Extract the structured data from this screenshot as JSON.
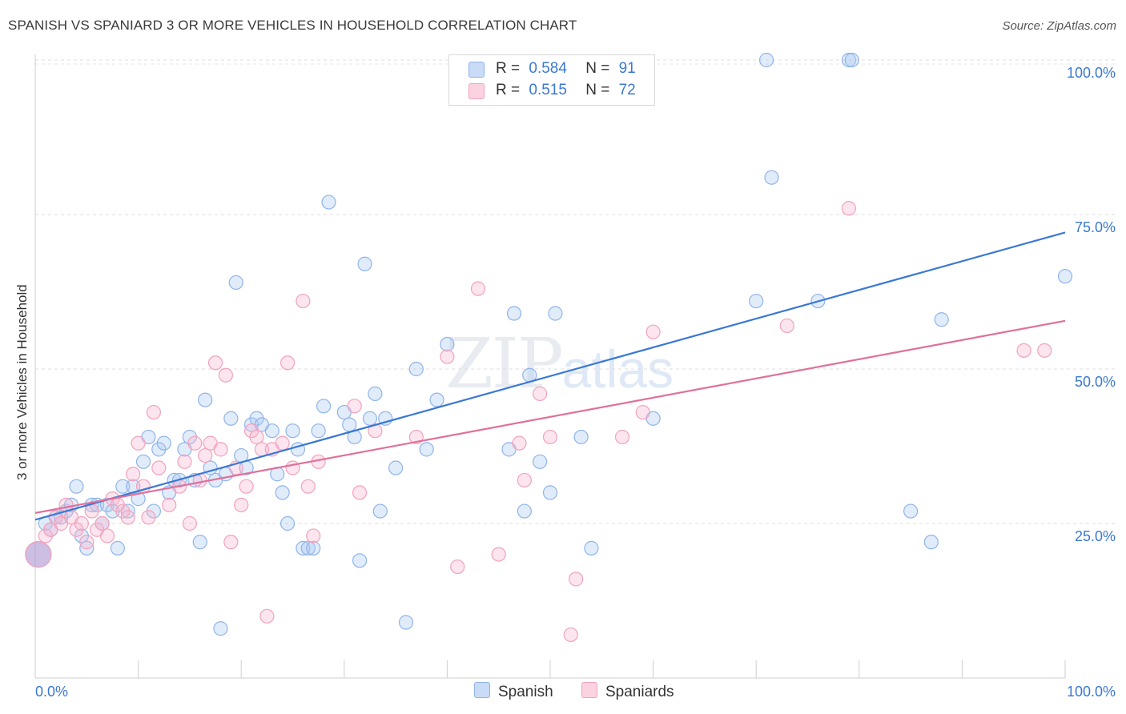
{
  "title": "SPANISH VS SPANIARD 3 OR MORE VEHICLES IN HOUSEHOLD CORRELATION CHART",
  "source": "Source: ZipAtlas.com",
  "watermark": {
    "zip": "ZIP",
    "atlas": "atlas"
  },
  "legend": {
    "r_label": "R =",
    "n_label": "N =",
    "rows": [
      {
        "r": "0.584",
        "n": "91"
      },
      {
        "r": "0.515",
        "n": "72"
      }
    ]
  },
  "chart_data": {
    "type": "scatter",
    "title": "SPANISH VS SPANIARD 3 OR MORE VEHICLES IN HOUSEHOLD CORRELATION CHART",
    "xlabel": "",
    "ylabel": "3 or more Vehicles in Household",
    "xlim": [
      0,
      100
    ],
    "ylim": [
      0,
      105
    ],
    "x_tick_labels": [
      "0.0%",
      "100.0%"
    ],
    "y_ticks": [
      25,
      50,
      75,
      100
    ],
    "y_tick_labels": [
      "25.0%",
      "50.0%",
      "75.0%",
      "100.0%"
    ],
    "grid": "horizontal dashed",
    "legend_position": "top-center",
    "colors": {
      "Spanish": "#8fb4ea",
      "Spaniards": "#f2a2bd",
      "Spanish_line": "#3a78d4",
      "Spaniards_line": "#e0709a"
    },
    "series": [
      {
        "name": "Spanish",
        "color": "#8fb4ea",
        "trend": {
          "x": [
            0,
            100
          ],
          "y": [
            25.6,
            72.1
          ]
        },
        "points": [
          [
            0.3,
            20
          ],
          [
            1,
            25
          ],
          [
            1.5,
            24
          ],
          [
            2,
            26
          ],
          [
            2.5,
            26
          ],
          [
            3,
            27
          ],
          [
            3.5,
            28
          ],
          [
            4,
            31
          ],
          [
            4.5,
            23
          ],
          [
            5,
            21
          ],
          [
            5.5,
            28
          ],
          [
            6,
            28
          ],
          [
            6.5,
            25
          ],
          [
            7,
            28
          ],
          [
            7.5,
            27
          ],
          [
            8,
            21
          ],
          [
            8.5,
            31
          ],
          [
            9,
            27
          ],
          [
            9.5,
            31
          ],
          [
            10,
            29
          ],
          [
            10.5,
            35
          ],
          [
            11,
            39
          ],
          [
            11.5,
            27
          ],
          [
            12,
            37
          ],
          [
            12.5,
            38
          ],
          [
            13,
            30
          ],
          [
            13.5,
            32
          ],
          [
            14,
            32
          ],
          [
            14.5,
            37
          ],
          [
            15,
            39
          ],
          [
            15.5,
            32
          ],
          [
            16,
            22
          ],
          [
            16.5,
            45
          ],
          [
            17,
            34
          ],
          [
            17.5,
            32
          ],
          [
            18,
            8
          ],
          [
            18.5,
            33
          ],
          [
            19,
            42
          ],
          [
            19.5,
            64
          ],
          [
            20,
            36
          ],
          [
            20.5,
            34
          ],
          [
            21,
            41
          ],
          [
            21.5,
            42
          ],
          [
            22,
            41
          ],
          [
            23,
            40
          ],
          [
            23.5,
            33
          ],
          [
            24,
            30
          ],
          [
            24.5,
            25
          ],
          [
            25,
            40
          ],
          [
            25.5,
            37
          ],
          [
            26,
            21
          ],
          [
            26.5,
            21
          ],
          [
            27,
            21
          ],
          [
            27.5,
            40
          ],
          [
            28,
            44
          ],
          [
            28.5,
            77
          ],
          [
            30,
            43
          ],
          [
            30.5,
            41
          ],
          [
            31,
            39
          ],
          [
            31.5,
            19
          ],
          [
            32,
            67
          ],
          [
            32.5,
            42
          ],
          [
            33,
            46
          ],
          [
            33.5,
            27
          ],
          [
            34,
            42
          ],
          [
            35,
            34
          ],
          [
            36,
            9
          ],
          [
            37,
            50
          ],
          [
            38,
            37
          ],
          [
            39,
            45
          ],
          [
            40,
            54
          ],
          [
            46,
            37
          ],
          [
            46.5,
            59
          ],
          [
            47.5,
            27
          ],
          [
            48,
            49
          ],
          [
            49,
            35
          ],
          [
            50,
            30
          ],
          [
            50.5,
            59
          ],
          [
            53,
            39
          ],
          [
            54,
            21
          ],
          [
            60,
            42
          ],
          [
            70,
            61
          ],
          [
            71,
            100
          ],
          [
            71.5,
            81
          ],
          [
            76,
            61
          ],
          [
            79,
            100
          ],
          [
            79.3,
            100
          ],
          [
            85,
            27
          ],
          [
            88,
            58
          ],
          [
            87,
            22
          ],
          [
            100,
            65
          ]
        ]
      },
      {
        "name": "Spaniards",
        "color": "#f2a2bd",
        "trend": {
          "x": [
            0,
            100
          ],
          "y": [
            26.7,
            57.8
          ]
        },
        "points": [
          [
            0.3,
            20
          ],
          [
            1,
            23
          ],
          [
            1.5,
            24
          ],
          [
            2,
            26
          ],
          [
            2.5,
            25
          ],
          [
            3,
            28
          ],
          [
            3.5,
            26
          ],
          [
            4,
            24
          ],
          [
            4.5,
            25
          ],
          [
            5,
            22
          ],
          [
            5.5,
            27
          ],
          [
            6,
            24
          ],
          [
            6.5,
            25
          ],
          [
            7,
            23
          ],
          [
            7.5,
            29
          ],
          [
            8,
            28
          ],
          [
            8.5,
            27
          ],
          [
            9,
            26
          ],
          [
            9.5,
            33
          ],
          [
            10,
            38
          ],
          [
            10.5,
            31
          ],
          [
            11,
            26
          ],
          [
            11.5,
            43
          ],
          [
            12,
            34
          ],
          [
            13,
            28
          ],
          [
            14,
            31
          ],
          [
            14.5,
            35
          ],
          [
            15,
            25
          ],
          [
            15.5,
            38
          ],
          [
            16,
            32
          ],
          [
            16.5,
            36
          ],
          [
            17,
            38
          ],
          [
            17.5,
            51
          ],
          [
            18,
            37
          ],
          [
            18.5,
            49
          ],
          [
            19,
            22
          ],
          [
            19.5,
            34
          ],
          [
            20,
            28
          ],
          [
            20.5,
            31
          ],
          [
            21,
            40
          ],
          [
            21.5,
            39
          ],
          [
            22,
            37
          ],
          [
            22.5,
            10
          ],
          [
            23,
            37
          ],
          [
            24,
            38
          ],
          [
            24.5,
            51
          ],
          [
            25,
            34
          ],
          [
            26,
            61
          ],
          [
            26.5,
            31
          ],
          [
            27,
            23
          ],
          [
            27.5,
            35
          ],
          [
            31,
            44
          ],
          [
            31.5,
            30
          ],
          [
            33,
            40
          ],
          [
            37,
            39
          ],
          [
            40,
            52
          ],
          [
            41,
            18
          ],
          [
            43,
            63
          ],
          [
            45,
            20
          ],
          [
            47,
            38
          ],
          [
            47.5,
            32
          ],
          [
            49,
            46
          ],
          [
            50,
            39
          ],
          [
            52,
            7
          ],
          [
            52.5,
            16
          ],
          [
            57,
            39
          ],
          [
            59,
            43
          ],
          [
            60,
            56
          ],
          [
            73,
            57
          ],
          [
            79,
            76
          ],
          [
            96,
            53
          ],
          [
            98,
            53
          ]
        ]
      }
    ]
  }
}
